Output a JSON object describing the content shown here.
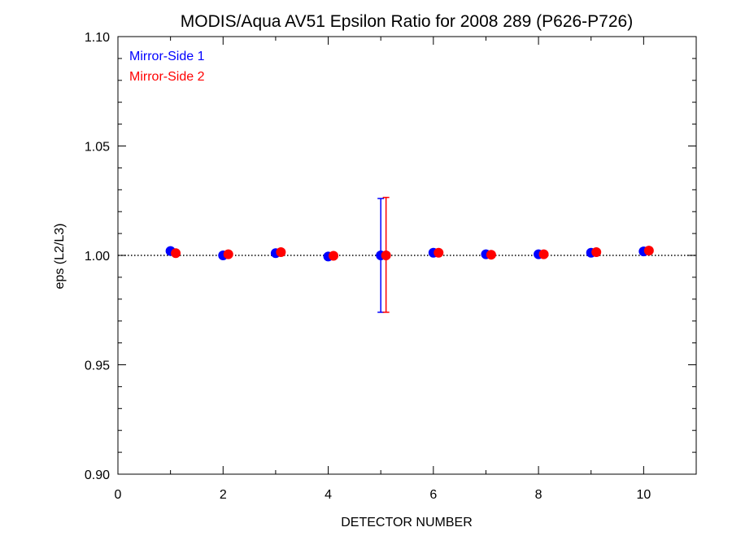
{
  "chart_data": {
    "type": "scatter",
    "title": "MODIS/Aqua AV51 Epsilon Ratio for 2008 289 (P626-P726)",
    "xlabel": "DETECTOR NUMBER",
    "ylabel": "eps (L2/L3)",
    "xlim": [
      0,
      11
    ],
    "ylim": [
      0.9,
      1.1
    ],
    "x_ticks": [
      0,
      2,
      4,
      6,
      8,
      10
    ],
    "x_tick_labels": [
      "0",
      "2",
      "4",
      "6",
      "8",
      "10"
    ],
    "y_ticks": [
      0.9,
      0.95,
      1.0,
      1.05,
      1.1
    ],
    "y_tick_labels": [
      "0.90",
      "0.95",
      "1.00",
      "1.05",
      "1.10"
    ],
    "reference_line": 1.0,
    "grid": false,
    "legend_position": "top-left",
    "series": [
      {
        "name": "Mirror-Side 1",
        "color": "#0000ff",
        "x": [
          1,
          2,
          3,
          4,
          5,
          6,
          7,
          8,
          9,
          10
        ],
        "y": [
          1.002,
          1.0,
          1.001,
          0.9995,
          1.0,
          1.0012,
          1.0005,
          1.0005,
          1.0012,
          1.0018
        ],
        "error_bars": [
          {
            "x": 5,
            "low": 0.974,
            "high": 1.026
          }
        ]
      },
      {
        "name": "Mirror-Side 2",
        "color": "#ff0000",
        "x": [
          1.1,
          2.1,
          3.1,
          4.1,
          5.1,
          6.1,
          7.1,
          8.1,
          9.1,
          10.1
        ],
        "y": [
          1.001,
          1.0005,
          1.0015,
          0.9998,
          1.0,
          1.0012,
          1.0003,
          1.0005,
          1.0015,
          1.0022
        ],
        "error_bars": [
          {
            "x": 5.1,
            "low": 0.974,
            "high": 1.0265
          }
        ]
      }
    ]
  }
}
